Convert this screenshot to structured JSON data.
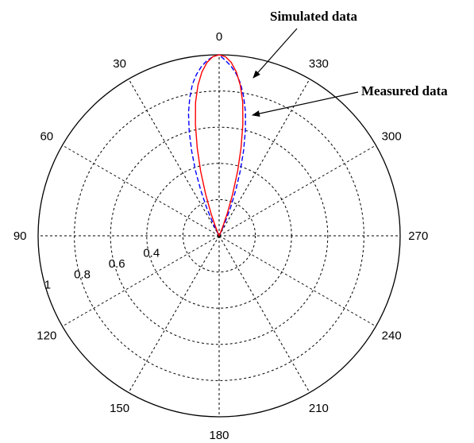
{
  "chart_data": {
    "type": "polar-line",
    "theta_direction": "counterclockwise",
    "theta_zero": "top",
    "angle_ticks": [
      "0",
      "30",
      "60",
      "90",
      "120",
      "150",
      "180",
      "210",
      "240",
      "270",
      "300",
      "330"
    ],
    "r_ticks": [
      0.2,
      0.4,
      0.6,
      0.8,
      1.0
    ],
    "r_tick_labels": [
      "0.4",
      "0.6",
      "0.8",
      "1"
    ],
    "rlim": [
      0,
      1
    ],
    "grid": true,
    "series": [
      {
        "name": "Simulated data",
        "color": "#0000ff",
        "linestyle": "dashed",
        "theta": [
          0,
          2,
          4,
          6,
          8,
          10,
          12,
          14,
          16,
          18,
          20,
          22,
          24,
          26,
          28,
          30,
          332,
          334,
          336,
          338,
          340,
          342,
          344,
          346,
          348,
          350,
          352,
          354,
          356,
          358
        ],
        "r": [
          1.0,
          0.99,
          0.97,
          0.94,
          0.9,
          0.85,
          0.78,
          0.7,
          0.6,
          0.49,
          0.38,
          0.27,
          0.17,
          0.08,
          0.02,
          0.0,
          0.0,
          0.02,
          0.08,
          0.17,
          0.27,
          0.38,
          0.49,
          0.6,
          0.7,
          0.78,
          0.85,
          0.9,
          0.94,
          0.97
        ]
      },
      {
        "name": "Measured data",
        "color": "#ff0000",
        "linestyle": "solid",
        "theta": [
          0,
          2,
          4,
          6,
          8,
          10,
          12,
          14,
          16,
          18,
          20,
          22,
          24,
          26,
          335,
          336,
          338,
          340,
          342,
          344,
          346,
          348,
          350,
          352,
          354,
          356,
          358
        ],
        "r": [
          1.0,
          0.99,
          0.96,
          0.91,
          0.84,
          0.75,
          0.63,
          0.5,
          0.37,
          0.24,
          0.13,
          0.05,
          0.01,
          0.0,
          0.0,
          0.01,
          0.05,
          0.13,
          0.24,
          0.37,
          0.5,
          0.63,
          0.75,
          0.84,
          0.91,
          0.96,
          0.99
        ]
      }
    ],
    "annotations": [
      {
        "text": "Simulated data",
        "points_to_series": 0
      },
      {
        "text": "Measured data",
        "points_to_series": 1
      }
    ]
  }
}
